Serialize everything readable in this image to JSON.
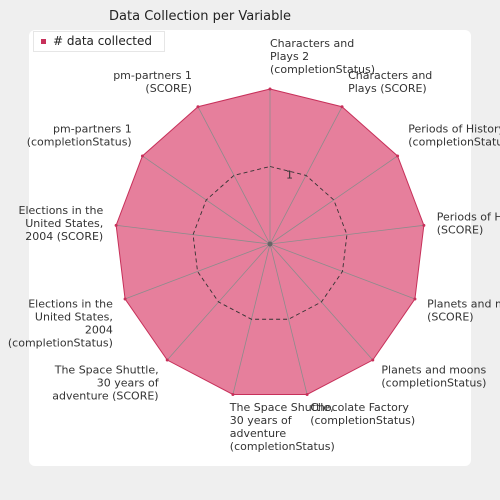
{
  "chart_data": {
    "type": "radar",
    "title": "Data Collection per Variable",
    "categories": [
      "Characters and Plays 2 (completionStatus)",
      "Characters and Plays (SCORE)",
      "Periods of History (completionStatus)",
      "Periods of History (SCORE)",
      "Planets and moons (SCORE)",
      "Planets and moons (completionStatus)",
      "Chocolate Factory (completionStatus)",
      "The Space Shuttle, 30 years of adventure (completionStatus)",
      "The Space Shuttle, 30 years of adventure (SCORE)",
      "Elections in the United States, 2004 (completionStatus)",
      "Elections in the United States, 2004 (SCORE)",
      "pm-partners 1 (completionStatus)",
      "pm-partners 1 (SCORE)"
    ],
    "category_lines": [
      [
        "Characters and",
        "Plays 2",
        "(completionStatus)"
      ],
      [
        "Characters and",
        "Plays (SCORE)"
      ],
      [
        "Periods of History",
        "(completionStatus)"
      ],
      [
        "Periods of History",
        "(SCORE)"
      ],
      [
        "Planets and moons",
        "(SCORE)"
      ],
      [
        "Planets and moons",
        "(completionStatus)"
      ],
      [
        "Chocolate Factory",
        "(completionStatus)"
      ],
      [
        "The Space Shuttle,",
        "30 years of",
        "adventure",
        "(completionStatus)"
      ],
      [
        "The Space Shuttle,",
        "30 years of",
        "adventure (SCORE)"
      ],
      [
        "Elections in the",
        "United States,",
        "2004",
        "(completionStatus)"
      ],
      [
        "Elections in the",
        "United States,",
        "2004 (SCORE)"
      ],
      [
        "pm-partners 1",
        "(completionStatus)"
      ],
      [
        "pm-partners 1",
        "(SCORE)"
      ]
    ],
    "series": [
      {
        "name": "# data collected",
        "values": [
          2,
          2,
          2,
          2,
          2,
          2,
          2,
          2,
          2,
          2,
          2,
          2,
          2
        ]
      }
    ],
    "rlim": [
      0,
      2
    ],
    "tick_labels": [
      "1"
    ],
    "legend_position": "top-left",
    "colors": {
      "series_fill": "#e67f9c",
      "series_stroke": "#c7305a",
      "grid": "#8c8c8c",
      "frame": "#efefef"
    }
  }
}
